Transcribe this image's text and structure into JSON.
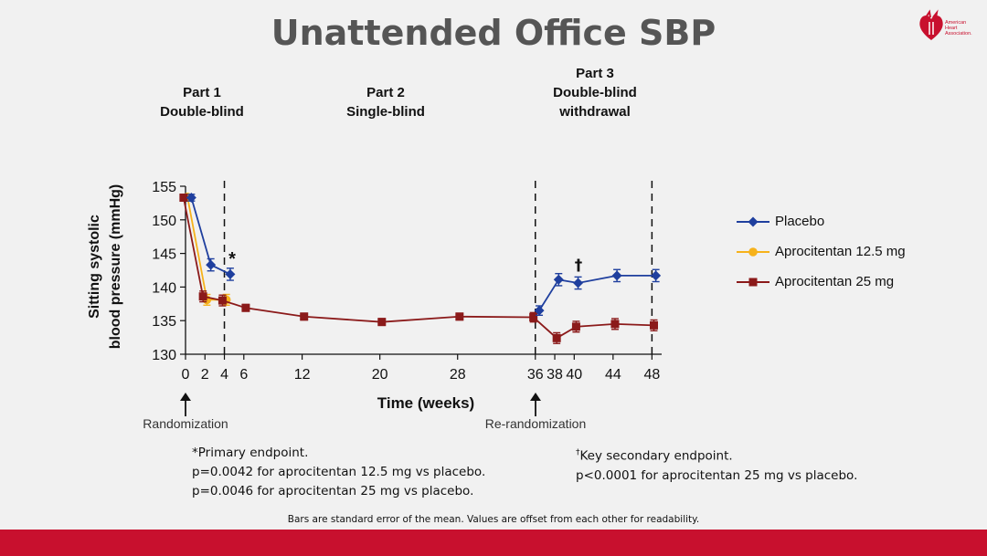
{
  "slide": {
    "title": "Unattended Office SBP",
    "logo_text": [
      "American",
      "Heart",
      "Association."
    ]
  },
  "parts": [
    {
      "lines": [
        "Part 1",
        "Double-blind"
      ]
    },
    {
      "lines": [
        "Part 2",
        "Single-blind"
      ]
    },
    {
      "lines": [
        "Part 3",
        "Double-blind",
        "withdrawal"
      ]
    }
  ],
  "annotations": {
    "randomization": "Randomization",
    "rerandomization": "Re-randomization",
    "primary_marker": "*",
    "secondary_marker": "†"
  },
  "footnotes": {
    "left": [
      "*Primary endpoint.",
      "p=0.0042 for aprocitentan 12.5 mg vs placebo.",
      "p=0.0046 for aprocitentan 25 mg vs placebo."
    ],
    "right_sup": "†",
    "right": [
      "Key secondary endpoint.",
      "p<0.0001 for aprocitentan 25 mg vs placebo."
    ],
    "bottom": "Bars are standard error of the mean. Values are offset from each other for readability."
  },
  "colors": {
    "placebo": "#1f3f9e",
    "apro125": "#f6b21b",
    "apro25": "#8b1a1a",
    "brand_red": "#c8102e"
  },
  "chart_data": {
    "type": "line",
    "xlabel": "Time (weeks)",
    "ylabel_lines": [
      "Sitting systolic",
      "blood pressure (mmHg)"
    ],
    "xlim": [
      0,
      49
    ],
    "ylim": [
      130,
      155
    ],
    "xticks": [
      0,
      2,
      4,
      6,
      12,
      20,
      28,
      36,
      38,
      40,
      44,
      48
    ],
    "yticks": [
      130,
      135,
      140,
      145,
      150,
      155
    ],
    "vlines": [
      4,
      36,
      48
    ],
    "series": [
      {
        "name": "Placebo",
        "key": "placebo",
        "marker": "diamond",
        "x": [
          0.6,
          2.6,
          4.6
        ],
        "y": [
          153.3,
          143.3,
          141.9
        ],
        "err": [
          0.5,
          0.9,
          0.9
        ]
      },
      {
        "name": "Placebo",
        "key": "placebo",
        "marker": "diamond",
        "x": [
          36.4,
          38.4,
          40.4,
          44.4,
          48.4
        ],
        "y": [
          136.5,
          141.1,
          140.6,
          141.7,
          141.7
        ],
        "err": [
          0.7,
          0.9,
          0.9,
          0.9,
          0.9
        ]
      },
      {
        "name": "Aprocitentan 12.5 mg",
        "key": "apro125",
        "marker": "circle",
        "x": [
          0.2,
          2.2,
          4.2
        ],
        "y": [
          153.4,
          138.1,
          138.1
        ],
        "err": [
          0.4,
          0.8,
          0.8
        ]
      },
      {
        "name": "Aprocitentan 25 mg",
        "key": "apro25",
        "marker": "square",
        "x": [
          -0.2,
          1.8,
          3.8,
          6.2,
          12.2,
          20.2,
          28.2,
          35.8,
          38.2,
          40.2,
          44.2,
          48.2
        ],
        "y": [
          153.3,
          138.6,
          138.0,
          136.9,
          135.6,
          134.8,
          135.6,
          135.5,
          132.4,
          134.1,
          134.5,
          134.3
        ],
        "err": [
          0.4,
          0.8,
          0.8,
          0.5,
          0.5,
          0.5,
          0.5,
          0.7,
          0.8,
          0.8,
          0.8,
          0.8
        ]
      }
    ],
    "legend": [
      {
        "name": "Placebo",
        "key": "placebo",
        "marker": "diamond"
      },
      {
        "name": "Aprocitentan 12.5 mg",
        "key": "apro125",
        "marker": "circle"
      },
      {
        "name": "Aprocitentan 25 mg",
        "key": "apro25",
        "marker": "square"
      }
    ],
    "legend_position": "right"
  }
}
